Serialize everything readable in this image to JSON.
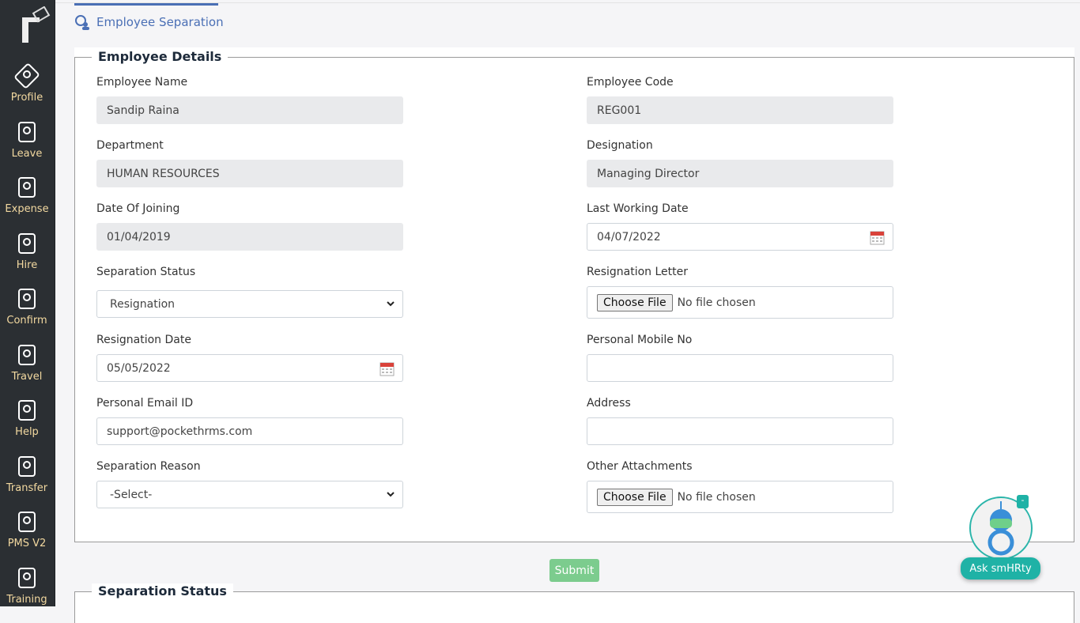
{
  "sidebar": {
    "items": [
      {
        "label": "Profile",
        "icon": "profile-icon"
      },
      {
        "label": "Leave",
        "icon": "leave-icon"
      },
      {
        "label": "Expense",
        "icon": "expense-icon"
      },
      {
        "label": "Hire",
        "icon": "hire-icon"
      },
      {
        "label": "Confirm",
        "icon": "confirm-icon"
      },
      {
        "label": "Travel",
        "icon": "travel-icon"
      },
      {
        "label": "Help",
        "icon": "help-icon"
      },
      {
        "label": "Transfer",
        "icon": "transfer-icon"
      },
      {
        "label": "PMS V2",
        "icon": "pms-icon"
      },
      {
        "label": "Training",
        "icon": "training-icon"
      }
    ]
  },
  "header": {
    "title": "Employee Separation"
  },
  "details": {
    "legend": "Employee Details",
    "employee_name": {
      "label": "Employee Name",
      "value": "Sandip Raina"
    },
    "employee_code": {
      "label": "Employee Code",
      "value": "REG001"
    },
    "department": {
      "label": "Department",
      "value": "HUMAN RESOURCES"
    },
    "designation": {
      "label": "Designation",
      "value": "Managing Director"
    },
    "doj": {
      "label": "Date Of Joining",
      "value": "01/04/2019"
    },
    "lwd": {
      "label": "Last Working Date",
      "value": "04/07/2022"
    },
    "sep_status": {
      "label": "Separation Status",
      "value": "Resignation"
    },
    "res_letter": {
      "label": "Resignation Letter",
      "button": "Choose File",
      "status": "No file chosen"
    },
    "res_date": {
      "label": "Resignation Date",
      "value": "05/05/2022"
    },
    "mobile": {
      "label": "Personal Mobile No",
      "value": ""
    },
    "email": {
      "label": "Personal Email ID",
      "value": "support@pockethrms.com"
    },
    "address": {
      "label": "Address",
      "value": ""
    },
    "reason": {
      "label": "Separation Reason",
      "value": "-Select-"
    },
    "other": {
      "label": "Other Attachments",
      "button": "Choose File",
      "status": "No file chosen"
    }
  },
  "submit_label": "Submit",
  "status_legend": "Separation Status",
  "chatbot": {
    "label": "Ask smHRty",
    "minimize": "-"
  },
  "colors": {
    "sidebar": "#2b2f33",
    "accent": "#4a6fb5",
    "submit": "#7ccc8e",
    "chatbot": "#1fb2a6"
  }
}
